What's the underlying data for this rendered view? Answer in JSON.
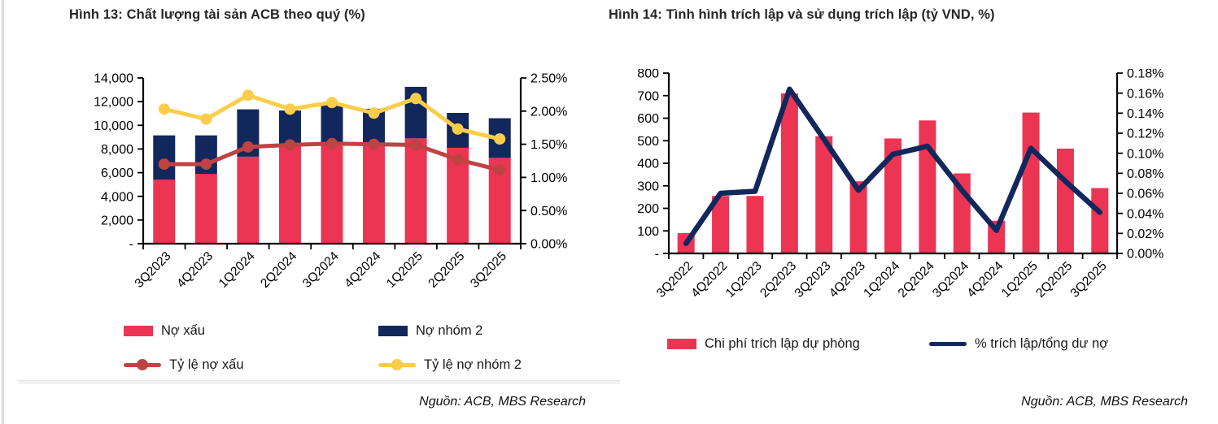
{
  "page": {
    "background_color": "#ffffff",
    "left_edge_color": "#dcdcdc"
  },
  "colors": {
    "bar_red": "#EC3453",
    "bar_navy": "#12275C",
    "line_dark_red": "#BE4342",
    "line_yellow": "#FACD4B",
    "axis_black": "#000000"
  },
  "figures": [
    {
      "title": "Hình 13: Chất lượng tài sản ACB theo quý (%)",
      "source": "Nguồn: ACB, MBS Research",
      "legend": [
        {
          "type": "bar",
          "color": "#EC3453",
          "label": "Nợ xấu"
        },
        {
          "type": "bar",
          "color": "#12275C",
          "label": "Nợ nhóm 2"
        },
        {
          "type": "line-marker",
          "color": "#BE4342",
          "label": "Tỷ lệ nợ xấu"
        },
        {
          "type": "line-marker",
          "color": "#FACD4B",
          "label": "Tỷ lệ nợ nhóm 2"
        }
      ],
      "chart_data": {
        "type": "bar",
        "subtype": "stacked-bar-with-lines-combo",
        "categories": [
          "3Q2023",
          "4Q2023",
          "1Q2024",
          "2Q2024",
          "3Q2024",
          "4Q2024",
          "1Q2025",
          "2Q2025",
          "3Q2025"
        ],
        "bar_series": [
          {
            "name": "Nợ xấu",
            "color": "#EC3453",
            "axis": "left",
            "values": [
              5400,
              5900,
              7350,
              8200,
              8500,
              8500,
              8900,
              8100,
              7250
            ]
          },
          {
            "name": "Nợ nhóm 2",
            "color": "#12275C",
            "axis": "left",
            "stacked": true,
            "values": [
              3750,
              3250,
              4000,
              3050,
              3300,
              2900,
              4350,
              2950,
              3350
            ]
          }
        ],
        "line_series": [
          {
            "name": "Tỷ lệ nợ xấu",
            "color": "#BE4342",
            "axis": "right",
            "marker": true,
            "values": [
              1.2,
              1.2,
              1.46,
              1.49,
              1.51,
              1.5,
              1.49,
              1.27,
              1.11
            ]
          },
          {
            "name": "Tỷ lệ nợ nhóm 2",
            "color": "#FACD4B",
            "axis": "right",
            "marker": true,
            "values": [
              2.03,
              1.88,
              2.24,
              2.03,
              2.13,
              1.97,
              2.19,
              1.73,
              1.58
            ]
          }
        ],
        "y_left": {
          "min": 0,
          "max": 14000,
          "tick_labels": [
            "14,000",
            "12,000",
            "10,000",
            "8,000",
            "6,000",
            "4,000",
            "2,000",
            "-"
          ]
        },
        "y_right": {
          "min": 0,
          "max": 2.5,
          "tick_labels": [
            "2.50%",
            "2.00%",
            "1.50%",
            "1.00%",
            "0.50%",
            "0.00%"
          ]
        },
        "grid": false,
        "legend_position": "bottom"
      }
    },
    {
      "title": "Hình 14: Tình hình trích lập và sử dụng trích lập (tỷ VND, %)",
      "source": "Nguồn: ACB, MBS Research",
      "legend": [
        {
          "type": "bar",
          "color": "#EC3453",
          "label": "Chi phí trích lập dự phòng"
        },
        {
          "type": "line",
          "color": "#12275C",
          "label": "% trích lập/tổng dư nợ"
        }
      ],
      "chart_data": {
        "type": "bar",
        "subtype": "bar-with-line-combo",
        "categories": [
          "3Q2022",
          "4Q2022",
          "1Q2023",
          "2Q2023",
          "3Q2023",
          "4Q2023",
          "1Q2024",
          "2Q2024",
          "3Q2024",
          "4Q2024",
          "1Q2025",
          "2Q2025",
          "3Q2025"
        ],
        "bar_series": [
          {
            "name": "Chi phí trích lập dự phòng",
            "color": "#EC3453",
            "axis": "left",
            "values": [
              90,
              255,
              255,
              710,
              520,
              320,
              510,
              590,
              355,
              145,
              625,
              465,
              290
            ]
          }
        ],
        "line_series": [
          {
            "name": "% trích lập/tổng dư nợ",
            "color": "#12275C",
            "axis": "right",
            "marker": false,
            "values": [
              0.01,
              0.06,
              0.062,
              0.164,
              0.114,
              0.063,
              0.099,
              0.107,
              0.063,
              0.023,
              0.105,
              0.072,
              0.041
            ]
          }
        ],
        "y_left": {
          "min": 0,
          "max": 800,
          "tick_labels": [
            "800",
            "700",
            "600",
            "500",
            "400",
            "300",
            "200",
            "100",
            "-"
          ]
        },
        "y_right": {
          "min": 0,
          "max": 0.18,
          "tick_labels": [
            "0.18%",
            "0.16%",
            "0.14%",
            "0.12%",
            "0.10%",
            "0.08%",
            "0.06%",
            "0.04%",
            "0.02%",
            "0.00%"
          ]
        },
        "grid": false,
        "legend_position": "bottom"
      }
    }
  ]
}
